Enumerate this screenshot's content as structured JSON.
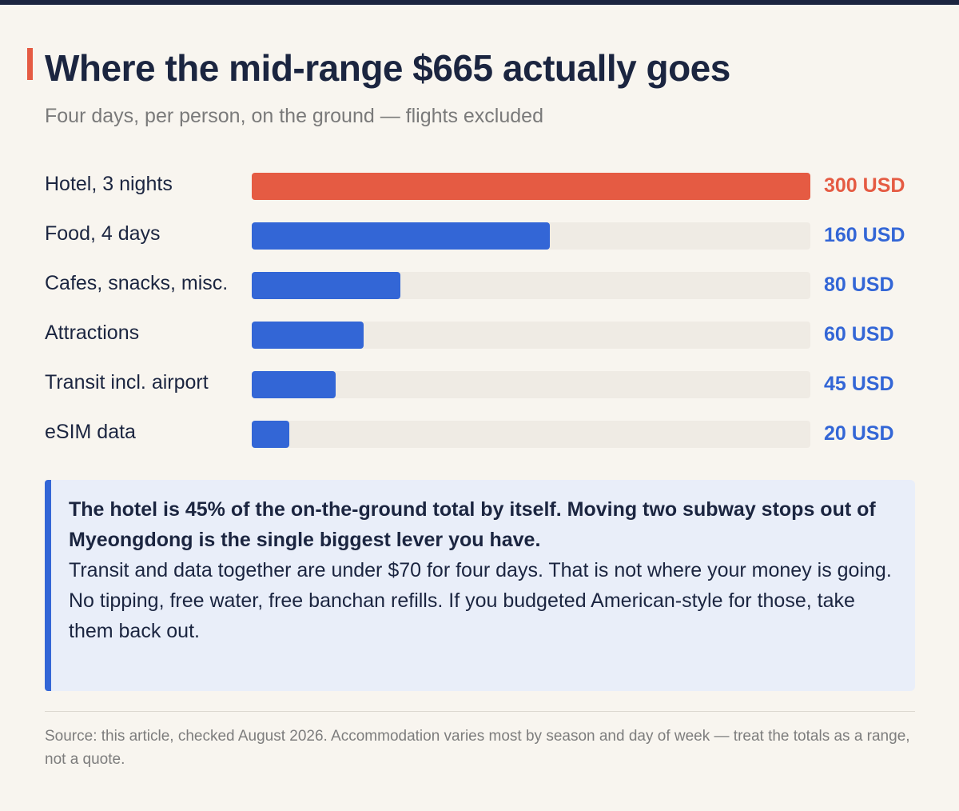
{
  "header": {
    "title": "Where the mid-range $665 actually goes",
    "subtitle": "Four days, per person, on the ground — flights excluded"
  },
  "colors": {
    "highlight": "#e55b43",
    "bar": "#3366d6",
    "track": "#efebe4",
    "background": "#f8f5ef",
    "title": "#1b2540"
  },
  "chart_data": {
    "type": "bar",
    "orientation": "horizontal",
    "title": "Where the mid-range $665 actually goes",
    "subtitle": "Four days, per person, on the ground — flights excluded",
    "categories": [
      "Hotel, 3 nights",
      "Food, 4 days",
      "Cafes, snacks, misc.",
      "Attractions",
      "Transit incl. airport",
      "eSIM data"
    ],
    "values": [
      300,
      160,
      80,
      60,
      45,
      20
    ],
    "value_labels": [
      "300 USD",
      "160 USD",
      "80 USD",
      "60 USD",
      "45 USD",
      "20 USD"
    ],
    "highlighted_category": "Hotel, 3 nights",
    "xlim": [
      0,
      300
    ],
    "grid": false,
    "legend": "none"
  },
  "callout": {
    "lead": "The hotel is 45% of the on-the-ground total by itself. Moving two subway stops out of Myeongdong is the single biggest lever you have.",
    "line2": "Transit and data together are under $70 for four days. That is not where your money is going.",
    "line3": "No tipping, free water, free banchan refills. If you budgeted American-style for those, take them back out."
  },
  "footer": {
    "source": "Source: this article, checked August 2026. Accommodation varies most by season and day of week — treat the totals as a range, not a quote."
  }
}
